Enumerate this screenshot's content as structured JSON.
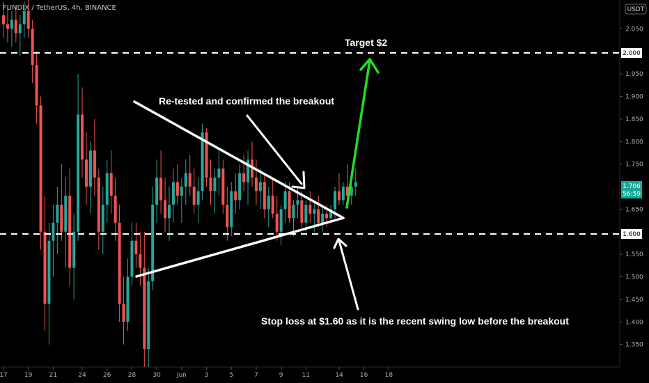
{
  "header": {
    "symbol_text": "FUNDIX / TetherUS, 4h, BINANCE"
  },
  "price_scale": {
    "currency_badge": "USDT",
    "current_price": "1.706",
    "countdown": "56:59"
  },
  "annotations": {
    "target": "Target $2",
    "retest": "Re-tested and confirmed the breakout",
    "stop_loss": "Stop loss at $1.60 as it is the recent swing low before the breakout"
  },
  "levels": [
    {
      "label": "2.000",
      "value": 2.0,
      "role": "target"
    },
    {
      "label": "1.600",
      "value": 1.6,
      "role": "stop"
    }
  ],
  "colors": {
    "background": "#000000",
    "up_candle": "#26a69a",
    "down_candle": "#ef5350",
    "target_arrow": "#22dd22",
    "annotation": "#ffffff",
    "price_badge": "#1aa89a"
  },
  "chart_data": {
    "type": "candlestick",
    "title": "FUNDIX / TetherUS, 4h, BINANCE",
    "ylim": [
      1.3,
      2.1
    ],
    "y_ticks": [
      "2.050",
      "1.950",
      "1.900",
      "1.850",
      "1.800",
      "1.750",
      "1.650",
      "1.550",
      "1.500",
      "1.450",
      "1.400",
      "1.350"
    ],
    "x_ticks": [
      "17",
      "19",
      "21",
      "24",
      "26",
      "28",
      "30",
      "Jun",
      "3",
      "5",
      "7",
      "9",
      "11",
      "14",
      "16",
      "18"
    ],
    "x_tick_index": [
      0,
      6,
      12,
      19,
      25,
      31,
      37,
      43,
      49,
      55,
      61,
      67,
      73,
      81,
      87,
      93
    ],
    "candles": [
      [
        2.08,
        2.11,
        2.03,
        2.06
      ],
      [
        2.06,
        2.1,
        2.02,
        2.05
      ],
      [
        2.05,
        2.09,
        2.01,
        2.07
      ],
      [
        2.07,
        2.1,
        2.02,
        2.04
      ],
      [
        2.04,
        2.08,
        1.99,
        2.06
      ],
      [
        2.06,
        2.11,
        2.03,
        2.09
      ],
      [
        2.09,
        2.12,
        2.03,
        2.05
      ],
      [
        2.05,
        2.07,
        1.93,
        1.97
      ],
      [
        1.97,
        2.0,
        1.84,
        1.88
      ],
      [
        1.88,
        1.9,
        1.56,
        1.6
      ],
      [
        1.6,
        1.68,
        1.38,
        1.44
      ],
      [
        1.44,
        1.62,
        1.35,
        1.58
      ],
      [
        1.58,
        1.66,
        1.5,
        1.62
      ],
      [
        1.62,
        1.7,
        1.55,
        1.66
      ],
      [
        1.66,
        1.75,
        1.58,
        1.6
      ],
      [
        1.6,
        1.72,
        1.52,
        1.68
      ],
      [
        1.68,
        1.74,
        1.48,
        1.52
      ],
      [
        1.52,
        1.64,
        1.45,
        1.6
      ],
      [
        1.6,
        1.95,
        1.58,
        1.86
      ],
      [
        1.86,
        1.92,
        1.72,
        1.76
      ],
      [
        1.76,
        1.82,
        1.66,
        1.7
      ],
      [
        1.7,
        1.8,
        1.64,
        1.78
      ],
      [
        1.78,
        1.85,
        1.68,
        1.72
      ],
      [
        1.72,
        1.74,
        1.56,
        1.6
      ],
      [
        1.6,
        1.7,
        1.55,
        1.66
      ],
      [
        1.66,
        1.76,
        1.62,
        1.73
      ],
      [
        1.73,
        1.78,
        1.64,
        1.68
      ],
      [
        1.68,
        1.72,
        1.58,
        1.62
      ],
      [
        1.62,
        1.66,
        1.4,
        1.44
      ],
      [
        1.44,
        1.5,
        1.35,
        1.4
      ],
      [
        1.4,
        1.54,
        1.38,
        1.5
      ],
      [
        1.5,
        1.62,
        1.48,
        1.58
      ],
      [
        1.58,
        1.62,
        1.52,
        1.55
      ],
      [
        1.55,
        1.6,
        1.48,
        1.52
      ],
      [
        1.52,
        1.6,
        1.3,
        1.34
      ],
      [
        1.34,
        1.52,
        1.3,
        1.49
      ],
      [
        1.49,
        1.7,
        1.47,
        1.66
      ],
      [
        1.66,
        1.76,
        1.62,
        1.72
      ],
      [
        1.72,
        1.78,
        1.64,
        1.67
      ],
      [
        1.67,
        1.72,
        1.6,
        1.63
      ],
      [
        1.63,
        1.7,
        1.58,
        1.66
      ],
      [
        1.66,
        1.74,
        1.62,
        1.71
      ],
      [
        1.71,
        1.75,
        1.66,
        1.68
      ],
      [
        1.68,
        1.72,
        1.62,
        1.7
      ],
      [
        1.7,
        1.76,
        1.66,
        1.73
      ],
      [
        1.73,
        1.77,
        1.68,
        1.7
      ],
      [
        1.7,
        1.74,
        1.64,
        1.66
      ],
      [
        1.66,
        1.72,
        1.62,
        1.69
      ],
      [
        1.69,
        1.84,
        1.67,
        1.82
      ],
      [
        1.82,
        1.83,
        1.7,
        1.72
      ],
      [
        1.72,
        1.76,
        1.66,
        1.69
      ],
      [
        1.69,
        1.74,
        1.64,
        1.72
      ],
      [
        1.72,
        1.78,
        1.68,
        1.74
      ],
      [
        1.74,
        1.76,
        1.64,
        1.66
      ],
      [
        1.66,
        1.7,
        1.58,
        1.61
      ],
      [
        1.61,
        1.71,
        1.59,
        1.69
      ],
      [
        1.69,
        1.73,
        1.64,
        1.67
      ],
      [
        1.67,
        1.75,
        1.65,
        1.73
      ],
      [
        1.73,
        1.77,
        1.69,
        1.71
      ],
      [
        1.71,
        1.78,
        1.66,
        1.76
      ],
      [
        1.76,
        1.8,
        1.7,
        1.72
      ],
      [
        1.72,
        1.76,
        1.66,
        1.69
      ],
      [
        1.69,
        1.74,
        1.65,
        1.71
      ],
      [
        1.71,
        1.73,
        1.63,
        1.65
      ],
      [
        1.65,
        1.7,
        1.61,
        1.68
      ],
      [
        1.68,
        1.72,
        1.63,
        1.64
      ],
      [
        1.64,
        1.68,
        1.58,
        1.6
      ],
      [
        1.6,
        1.66,
        1.57,
        1.65
      ],
      [
        1.65,
        1.71,
        1.62,
        1.69
      ],
      [
        1.69,
        1.71,
        1.62,
        1.63
      ],
      [
        1.63,
        1.67,
        1.59,
        1.66
      ],
      [
        1.66,
        1.7,
        1.63,
        1.67
      ],
      [
        1.67,
        1.69,
        1.61,
        1.62
      ],
      [
        1.62,
        1.67,
        1.6,
        1.66
      ],
      [
        1.66,
        1.69,
        1.62,
        1.64
      ],
      [
        1.64,
        1.67,
        1.6,
        1.65
      ],
      [
        1.65,
        1.68,
        1.61,
        1.62
      ],
      [
        1.62,
        1.66,
        1.6,
        1.64
      ],
      [
        1.64,
        1.66,
        1.61,
        1.63
      ],
      [
        1.63,
        1.66,
        1.62,
        1.65
      ],
      [
        1.65,
        1.7,
        1.63,
        1.69
      ],
      [
        1.69,
        1.73,
        1.66,
        1.67
      ],
      [
        1.67,
        1.71,
        1.66,
        1.7
      ],
      [
        1.7,
        1.75,
        1.67,
        1.68
      ],
      [
        1.68,
        1.72,
        1.66,
        1.7
      ],
      [
        1.7,
        1.74,
        1.68,
        1.71
      ]
    ],
    "annotations_lines": {
      "triangle_upper": [
        [
          1.9,
          37
        ],
        [
          1.63,
          100
        ]
      ],
      "triangle_lower": [
        [
          1.51,
          37
        ],
        [
          1.63,
          100
        ]
      ]
    }
  }
}
